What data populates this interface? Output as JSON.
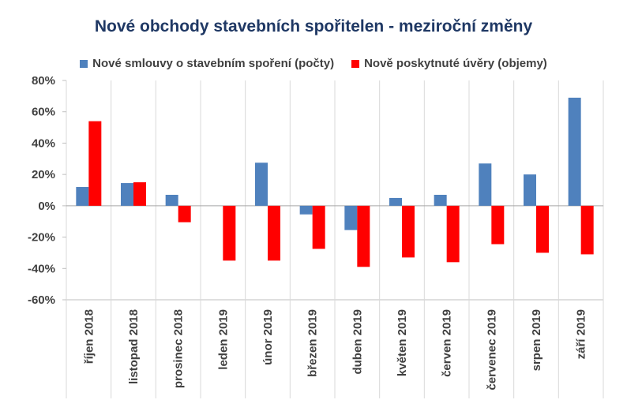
{
  "chart_data": {
    "type": "bar",
    "title": "Nové obchody stavebních spořitelen - meziroční změny",
    "categories": [
      "říjen 2018",
      "listopad 2018",
      "prosinec 2018",
      "leden 2019",
      "únor 2019",
      "březen 2019",
      "duben 2019",
      "květen 2019",
      "červen 2019",
      "červenec 2019",
      "srpen 2019",
      "září 2019"
    ],
    "series": [
      {
        "name": "Nové smlouvy o stavebním spoření (počty)",
        "color": "#4f81bd",
        "values": [
          12,
          14.5,
          7,
          0,
          27.5,
          -5.5,
          -15.5,
          5,
          7,
          27,
          20,
          69
        ]
      },
      {
        "name": "Nově poskytnuté úvěry (objemy)",
        "color": "#ff0000",
        "values": [
          54,
          15,
          -10.5,
          -35,
          -35,
          -27.5,
          -39,
          -33,
          -36,
          -24.5,
          -30,
          -31
        ]
      }
    ],
    "ylim": [
      -60,
      80
    ],
    "yticks": [
      80,
      60,
      40,
      20,
      0,
      -20,
      -40,
      -60
    ],
    "ytick_labels": [
      "80%",
      "60%",
      "40%",
      "20%",
      "0%",
      "-20%",
      "-40%",
      "-60%"
    ],
    "xlabel": "",
    "ylabel": "",
    "grid": false,
    "legend_position": "top"
  }
}
